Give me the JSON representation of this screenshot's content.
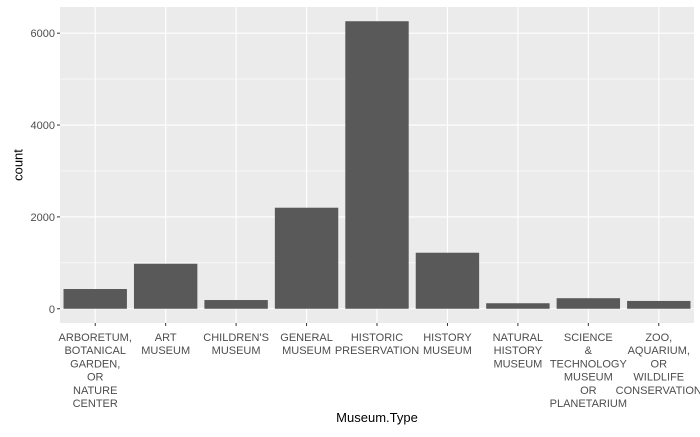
{
  "chart_data": {
    "type": "bar",
    "categories": [
      [
        "ARBORETUM,",
        "BOTANICAL",
        "GARDEN,",
        "OR",
        "NATURE",
        "CENTER"
      ],
      [
        "ART",
        "MUSEUM"
      ],
      [
        "CHILDREN'S",
        "MUSEUM"
      ],
      [
        "GENERAL",
        "MUSEUM"
      ],
      [
        "HISTORIC",
        "PRESERVATION"
      ],
      [
        "HISTORY",
        "MUSEUM"
      ],
      [
        "NATURAL",
        "HISTORY",
        "MUSEUM"
      ],
      [
        "SCIENCE",
        "&",
        "TECHNOLOGY",
        "MUSEUM",
        "OR",
        "PLANETARIUM"
      ],
      [
        "ZOO,",
        "AQUARIUM,",
        "OR",
        "WILDLIFE",
        "CONSERVATION"
      ]
    ],
    "values": [
      430,
      980,
      190,
      2200,
      6260,
      1220,
      120,
      230,
      170
    ],
    "xlabel": "Museum.Type",
    "ylabel": "count",
    "ylim": [
      -310,
      6570
    ],
    "yticks": [
      0,
      2000,
      4000,
      6000
    ],
    "ytick_labels": [
      "0",
      "2000",
      "4000",
      "6000"
    ],
    "grid": true,
    "colors": {
      "panel": "#ebebeb",
      "grid_major": "#ffffff",
      "bar": "#595959",
      "tick_text": "#4d4d4d",
      "title_text": "#000000"
    }
  }
}
